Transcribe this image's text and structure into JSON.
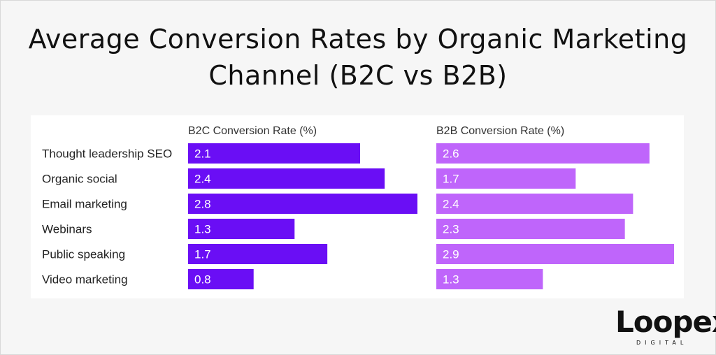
{
  "title_line1": "Average Conversion Rates by Organic Marketing",
  "title_line2": "Channel (B2C vs B2B)",
  "brand": {
    "name": "Loopex",
    "sub": "DIGITAL"
  },
  "chart_data": [
    {
      "type": "bar",
      "orientation": "horizontal",
      "title": "B2C Conversion Rate (%)",
      "categories": [
        "Thought leadership SEO",
        "Organic social",
        "Email marketing",
        "Webinars",
        "Public speaking",
        "Video marketing"
      ],
      "values": [
        2.1,
        2.4,
        2.8,
        1.3,
        1.7,
        0.8
      ],
      "color": "#6a0ef5",
      "xlim": [
        0,
        2.8
      ],
      "data_labels": true,
      "grid": false
    },
    {
      "type": "bar",
      "orientation": "horizontal",
      "title": "B2B Conversion Rate (%)",
      "categories": [
        "Thought leadership SEO",
        "Organic social",
        "Email marketing",
        "Webinars",
        "Public speaking",
        "Video marketing"
      ],
      "values": [
        2.6,
        1.7,
        2.4,
        2.3,
        2.9,
        1.3
      ],
      "color": "#bf65fb",
      "xlim": [
        0,
        2.9
      ],
      "data_labels": true,
      "grid": false
    }
  ]
}
